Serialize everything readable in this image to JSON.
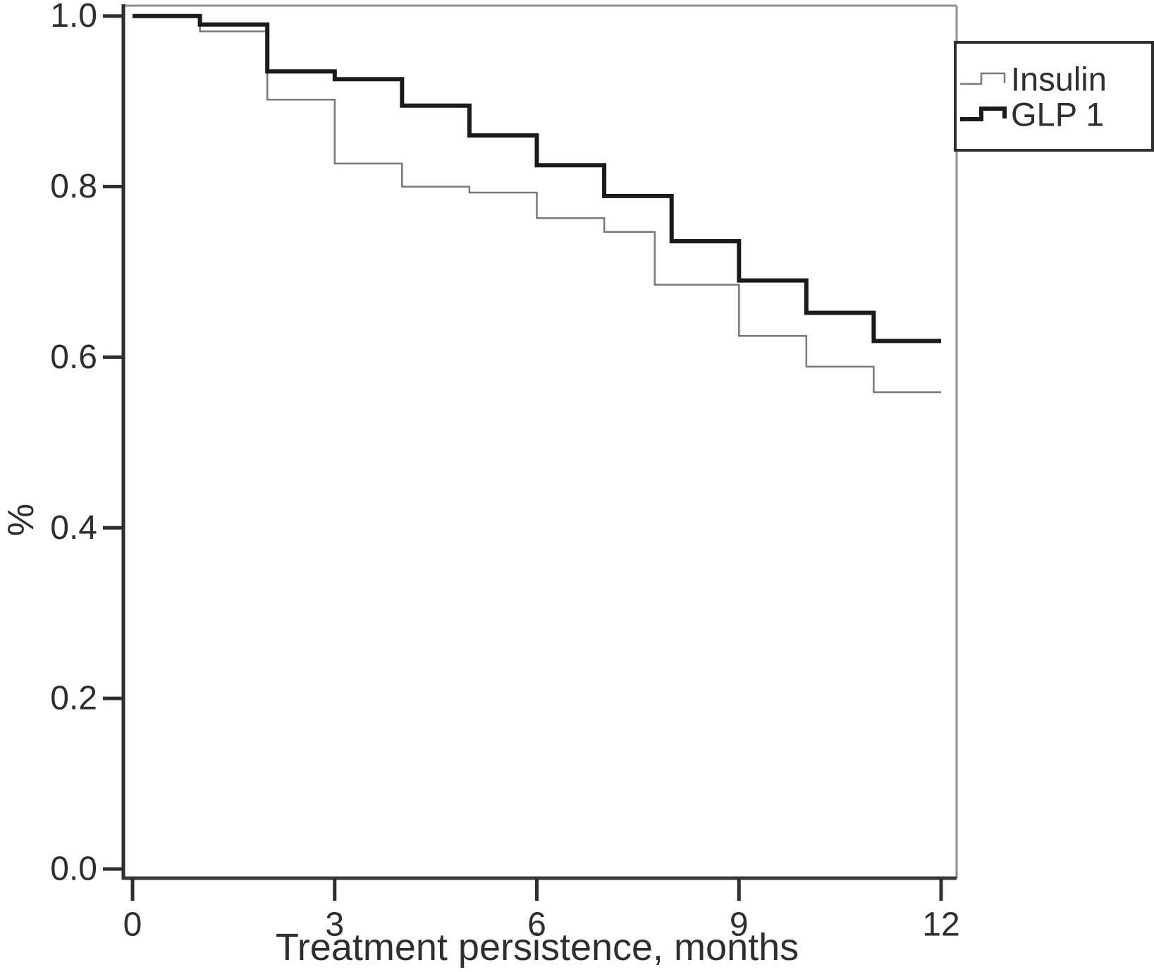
{
  "figure": {
    "background": "#ffffff",
    "plot_border_dark_color": "#2e2e2e",
    "plot_border_gray_color": "#8e8e8e"
  },
  "chart_data": {
    "type": "line",
    "subtype": "kaplan-meier-step",
    "title": "",
    "xlabel": "Treatment persistence, months",
    "ylabel": "%",
    "xlim": [
      0,
      12
    ],
    "ylim": [
      0.0,
      1.0
    ],
    "x_ticks": [
      0,
      3,
      6,
      9,
      12
    ],
    "y_ticks": [
      "0.0",
      "0.2",
      "0.4",
      "0.6",
      "0.8",
      "1.0"
    ],
    "grid": false,
    "legend_position": "top-right",
    "series": [
      {
        "name": "Insulin",
        "color": "#787878",
        "stroke_width": 2.5,
        "steps": [
          [
            0,
            1.0
          ],
          [
            1,
            0.982
          ],
          [
            2,
            0.902
          ],
          [
            3,
            0.827
          ],
          [
            4,
            0.8
          ],
          [
            5,
            0.793
          ],
          [
            6,
            0.763
          ],
          [
            7,
            0.747
          ],
          [
            7.75,
            0.685
          ],
          [
            9,
            0.625
          ],
          [
            10,
            0.589
          ],
          [
            11,
            0.559
          ]
        ],
        "end_x": 12
      },
      {
        "name": "GLP 1",
        "color": "#1a1a1a",
        "stroke_width": 6,
        "steps": [
          [
            0,
            1.0
          ],
          [
            1,
            0.99
          ],
          [
            2,
            0.935
          ],
          [
            3,
            0.926
          ],
          [
            4,
            0.895
          ],
          [
            5,
            0.86
          ],
          [
            6,
            0.825
          ],
          [
            7,
            0.789
          ],
          [
            8,
            0.736
          ],
          [
            9,
            0.69
          ],
          [
            10,
            0.652
          ],
          [
            11,
            0.619
          ]
        ],
        "end_x": 12
      }
    ]
  }
}
